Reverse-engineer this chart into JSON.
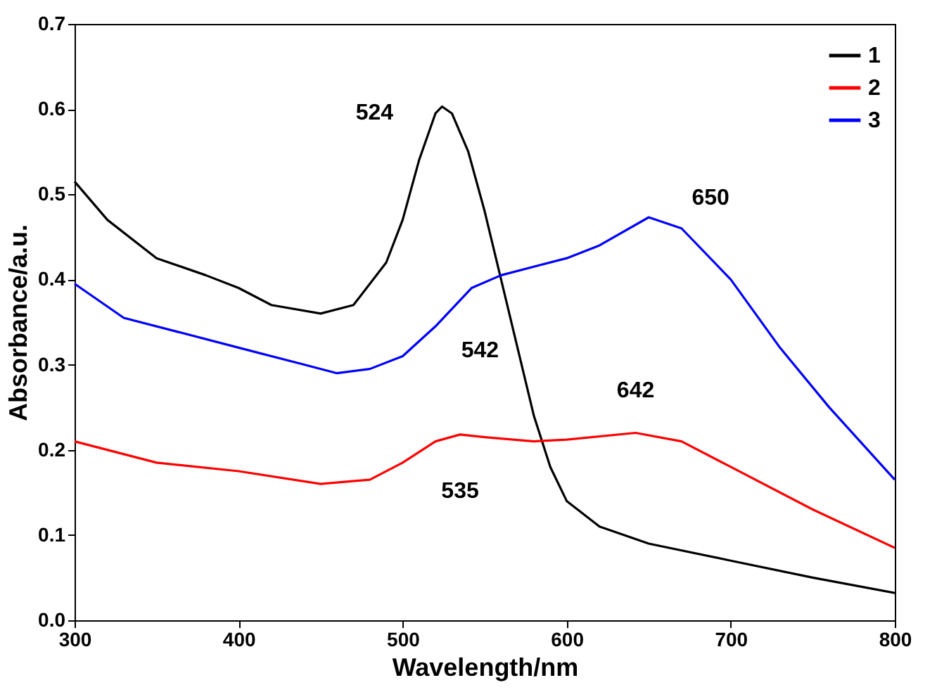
{
  "chart_data": {
    "type": "line",
    "xlabel": "Wavelength/nm",
    "ylabel": "Absorbance/a.u.",
    "xlim": [
      300,
      800
    ],
    "xticks": [
      300,
      400,
      500,
      600,
      700,
      800
    ],
    "ylim": [
      0,
      0.7
    ],
    "yticks": [
      {
        "value": 0,
        "label": "0.0"
      },
      {
        "value": 0.1,
        "label": "0.1"
      },
      {
        "value": 0.2,
        "label": "0.2"
      },
      {
        "value": 0.3,
        "label": "0.3"
      },
      {
        "value": 0.4,
        "label": "0.4"
      },
      {
        "value": 0.5,
        "label": "0.5"
      },
      {
        "value": 0.6,
        "label": "0.6"
      },
      {
        "value": 0.7,
        "label": "0.7"
      }
    ],
    "legend": "top right",
    "grid": false,
    "marker": "none",
    "line_style": "solid",
    "series": [
      {
        "name": "1",
        "color": "#000000",
        "x": [
          300,
          320,
          350,
          380,
          400,
          420,
          450,
          470,
          490,
          500,
          510,
          520,
          524,
          530,
          540,
          550,
          560,
          570,
          580,
          590,
          600,
          620,
          650,
          700,
          750,
          800
        ],
        "values": [
          0.515,
          0.47,
          0.425,
          0.405,
          0.39,
          0.37,
          0.36,
          0.37,
          0.42,
          0.47,
          0.54,
          0.595,
          0.603,
          0.595,
          0.55,
          0.48,
          0.4,
          0.32,
          0.24,
          0.18,
          0.14,
          0.11,
          0.09,
          0.07,
          0.05,
          0.032
        ]
      },
      {
        "name": "2",
        "color": "#ff0000",
        "x": [
          300,
          350,
          400,
          450,
          480,
          500,
          520,
          535,
          550,
          580,
          600,
          642,
          670,
          700,
          750,
          800
        ],
        "values": [
          0.21,
          0.185,
          0.175,
          0.16,
          0.165,
          0.185,
          0.21,
          0.218,
          0.215,
          0.21,
          0.212,
          0.22,
          0.21,
          0.18,
          0.13,
          0.085
        ]
      },
      {
        "name": "3",
        "color": "#0000ff",
        "x": [
          300,
          330,
          360,
          400,
          440,
          460,
          480,
          500,
          520,
          542,
          560,
          600,
          620,
          650,
          670,
          700,
          730,
          760,
          800
        ],
        "values": [
          0.395,
          0.355,
          0.34,
          0.32,
          0.3,
          0.29,
          0.295,
          0.31,
          0.345,
          0.39,
          0.405,
          0.425,
          0.44,
          0.473,
          0.46,
          0.4,
          0.32,
          0.25,
          0.165
        ]
      }
    ],
    "annotations": [
      {
        "text": "524",
        "x": 524,
        "y": 0.603
      },
      {
        "text": "542",
        "x": 542,
        "y": 0.39
      },
      {
        "text": "650",
        "x": 650,
        "y": 0.473
      },
      {
        "text": "535",
        "x": 535,
        "y": 0.218
      },
      {
        "text": "642",
        "x": 642,
        "y": 0.22
      }
    ]
  }
}
